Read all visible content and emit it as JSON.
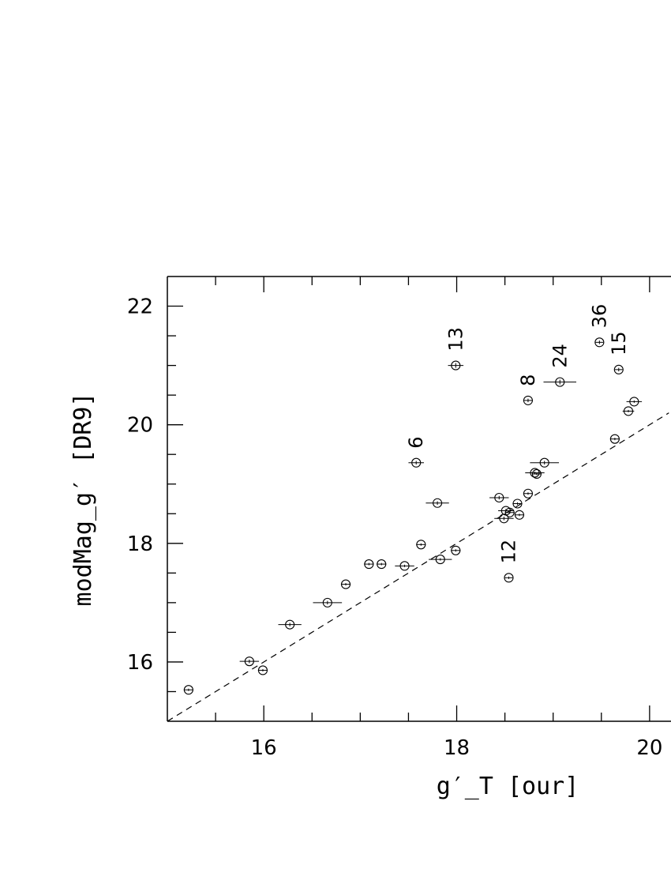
{
  "chart_data": {
    "type": "scatter",
    "xlabel": "g′_T [our]",
    "ylabel": "modMag_g′ [DR9]",
    "xlim": [
      15.0,
      20.2
    ],
    "ylim": [
      15.0,
      22.5
    ],
    "x_ticks": [
      16,
      18,
      20
    ],
    "y_ticks": [
      16,
      18,
      20,
      22
    ],
    "grid": false,
    "reference_line": {
      "style": "dashed",
      "points": [
        [
          15.0,
          15.0
        ],
        [
          20.2,
          20.2
        ]
      ]
    },
    "points": [
      {
        "x": 15.22,
        "y": 15.53,
        "xerr": 0.05,
        "yerr": 0.02
      },
      {
        "x": 15.85,
        "y": 16.01,
        "xerr": 0.1,
        "yerr": 0.03
      },
      {
        "x": 15.99,
        "y": 15.86,
        "xerr": 0.05,
        "yerr": 0.02
      },
      {
        "x": 16.27,
        "y": 16.63,
        "xerr": 0.12,
        "yerr": 0.03
      },
      {
        "x": 16.66,
        "y": 17.0,
        "xerr": 0.15,
        "yerr": 0.03
      },
      {
        "x": 16.85,
        "y": 17.31,
        "xerr": 0.05,
        "yerr": 0.02
      },
      {
        "x": 17.09,
        "y": 17.65,
        "xerr": 0.05,
        "yerr": 0.02
      },
      {
        "x": 17.22,
        "y": 17.65,
        "xerr": 0.05,
        "yerr": 0.02
      },
      {
        "x": 17.46,
        "y": 17.62,
        "xerr": 0.1,
        "yerr": 0.02
      },
      {
        "x": 17.63,
        "y": 17.98,
        "xerr": 0.05,
        "yerr": 0.02
      },
      {
        "x": 17.58,
        "y": 19.36,
        "xerr": 0.08,
        "yerr": 0.03,
        "label": "6"
      },
      {
        "x": 17.8,
        "y": 18.68,
        "xerr": 0.12,
        "yerr": 0.03
      },
      {
        "x": 17.83,
        "y": 17.73,
        "xerr": 0.12,
        "yerr": 0.02
      },
      {
        "x": 17.99,
        "y": 17.88,
        "xerr": 0.05,
        "yerr": 0.02
      },
      {
        "x": 17.99,
        "y": 21.0,
        "xerr": 0.08,
        "yerr": 0.04,
        "label": "13"
      },
      {
        "x": 18.44,
        "y": 18.77,
        "xerr": 0.1,
        "yerr": 0.03
      },
      {
        "x": 18.49,
        "y": 18.42,
        "xerr": 0.1,
        "yerr": 0.03
      },
      {
        "x": 18.51,
        "y": 18.55,
        "xerr": 0.08,
        "yerr": 0.03
      },
      {
        "x": 18.55,
        "y": 18.52,
        "xerr": 0.05,
        "yerr": 0.02
      },
      {
        "x": 18.63,
        "y": 18.67,
        "xerr": 0.05,
        "yerr": 0.02
      },
      {
        "x": 18.65,
        "y": 18.48,
        "xerr": 0.05,
        "yerr": 0.02
      },
      {
        "x": 18.54,
        "y": 17.42,
        "xerr": 0.04,
        "yerr": 0.02,
        "label": "12"
      },
      {
        "x": 18.74,
        "y": 18.84,
        "xerr": 0.05,
        "yerr": 0.02
      },
      {
        "x": 18.74,
        "y": 20.41,
        "xerr": 0.05,
        "yerr": 0.03,
        "label": "8"
      },
      {
        "x": 18.81,
        "y": 19.19,
        "xerr": 0.1,
        "yerr": 0.02
      },
      {
        "x": 18.83,
        "y": 19.17,
        "xerr": 0.05,
        "yerr": 0.02
      },
      {
        "x": 18.91,
        "y": 19.36,
        "xerr": 0.15,
        "yerr": 0.03
      },
      {
        "x": 19.07,
        "y": 20.72,
        "xerr": 0.17,
        "yerr": 0.04,
        "label": "24"
      },
      {
        "x": 19.48,
        "y": 21.39,
        "xerr": 0.04,
        "yerr": 0.03,
        "label": "36"
      },
      {
        "x": 19.64,
        "y": 19.76,
        "xerr": 0.05,
        "yerr": 0.02
      },
      {
        "x": 19.68,
        "y": 20.93,
        "xerr": 0.04,
        "yerr": 0.03,
        "label": "15"
      },
      {
        "x": 19.78,
        "y": 20.23,
        "xerr": 0.06,
        "yerr": 0.02
      },
      {
        "x": 19.84,
        "y": 20.39,
        "xerr": 0.08,
        "yerr": 0.02
      }
    ]
  }
}
